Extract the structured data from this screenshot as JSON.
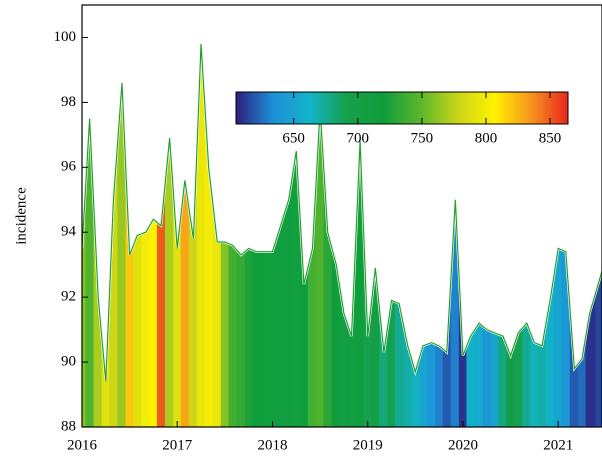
{
  "chart_data": {
    "type": "color-area",
    "y_label": "incidence",
    "x": [
      2016.0,
      2016.08,
      2016.17,
      2016.25,
      2016.33,
      2016.42,
      2016.5,
      2016.58,
      2016.67,
      2016.75,
      2016.83,
      2016.92,
      2017.0,
      2017.08,
      2017.17,
      2017.25,
      2017.33,
      2017.42,
      2017.5,
      2017.58,
      2017.67,
      2017.75,
      2017.83,
      2018.0,
      2018.17,
      2018.25,
      2018.33,
      2018.42,
      2018.5,
      2018.58,
      2018.67,
      2018.75,
      2018.83,
      2018.92,
      2019.0,
      2019.08,
      2019.17,
      2019.25,
      2019.33,
      2019.42,
      2019.5,
      2019.58,
      2019.67,
      2019.75,
      2019.83,
      2019.92,
      2020.0,
      2020.08,
      2020.17,
      2020.25,
      2020.33,
      2020.42,
      2020.5,
      2020.58,
      2020.67,
      2020.75,
      2020.83,
      2020.92,
      2021.0,
      2021.08,
      2021.17,
      2021.25,
      2021.33,
      2021.46
    ],
    "values": [
      93.5,
      97.5,
      92,
      89.4,
      95,
      98.6,
      93.3,
      93.9,
      94.0,
      94.4,
      94.2,
      96.9,
      93.5,
      95.6,
      93.8,
      99.8,
      96,
      93.7,
      93.7,
      93.6,
      93.3,
      93.5,
      93.4,
      93.4,
      95,
      96.5,
      92.4,
      93.5,
      97.8,
      94,
      93,
      91.5,
      90.8,
      96.8,
      90.8,
      92.9,
      90.3,
      91.9,
      91.8,
      90.5,
      89.7,
      90.5,
      90.6,
      90.5,
      90.3,
      95,
      90.2,
      90.8,
      91.2,
      91,
      90.9,
      90.8,
      90.2,
      90.9,
      91.2,
      90.6,
      90.5,
      92,
      93.5,
      93.4,
      89.8,
      90.1,
      91.5,
      92.8
    ],
    "color_values": [
      760,
      745,
      770,
      790,
      780,
      765,
      820,
      790,
      800,
      805,
      850,
      770,
      790,
      830,
      780,
      795,
      800,
      795,
      760,
      740,
      735,
      725,
      720,
      715,
      715,
      712,
      720,
      740,
      745,
      730,
      720,
      700,
      710,
      720,
      690,
      700,
      680,
      690,
      675,
      670,
      665,
      650,
      640,
      630,
      620,
      630,
      610,
      660,
      655,
      640,
      650,
      680,
      700,
      690,
      675,
      665,
      670,
      660,
      650,
      640,
      620,
      625,
      610,
      615
    ],
    "xlim": [
      2016,
      2021.46
    ],
    "xticks": [
      2016,
      2017,
      2018,
      2019,
      2020,
      2021
    ],
    "ylim": [
      88,
      101
    ],
    "yticks": [
      88,
      90,
      92,
      94,
      96,
      98,
      100
    ],
    "line_color": "#22a02a",
    "colormap": [
      "#2d1e7e",
      "#1e90d8",
      "#12b4c8",
      "#16a04a",
      "#0f9e3c",
      "#5ab62c",
      "#c9d51a",
      "#fff200",
      "#f7941d",
      "#e8251f"
    ],
    "clim": [
      605,
      864
    ],
    "cticks": [
      650,
      700,
      750,
      800,
      850
    ]
  }
}
